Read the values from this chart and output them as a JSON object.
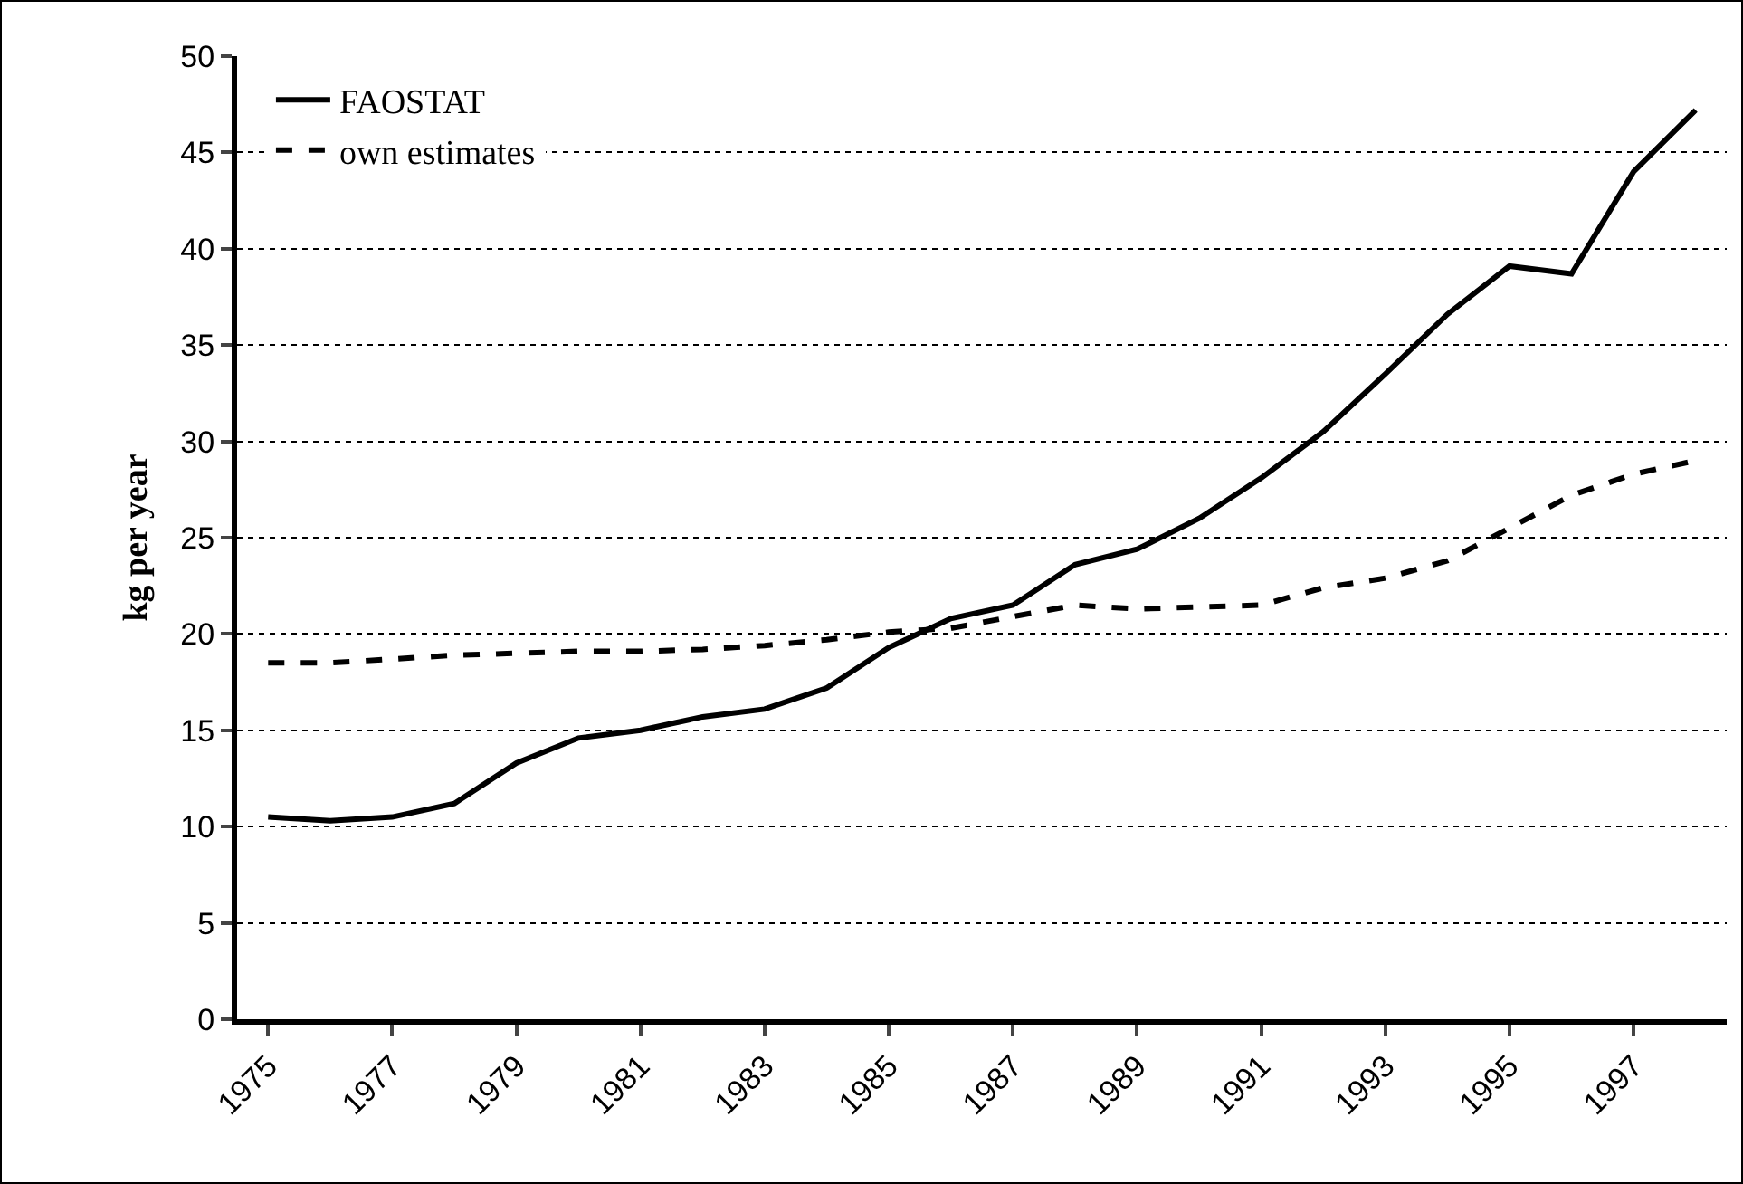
{
  "chart_data": {
    "type": "line",
    "ylabel": "kg per year",
    "categories": [
      "1975",
      null,
      "1977",
      null,
      "1979",
      null,
      "1981",
      null,
      "1983",
      null,
      "1985",
      null,
      "1987",
      null,
      "1989",
      null,
      "1991",
      null,
      "1993",
      null,
      "1995",
      null,
      "1997",
      null
    ],
    "series": [
      {
        "name": "FAOSTAT",
        "color": "#000000",
        "line_style": "solid",
        "values": [
          10.5,
          10.3,
          10.5,
          11.2,
          13.3,
          14.6,
          15.0,
          15.7,
          16.1,
          17.2,
          19.3,
          20.8,
          21.5,
          23.6,
          24.4,
          26.0,
          28.1,
          30.5,
          33.5,
          36.6,
          39.1,
          38.7,
          44.0,
          47.2
        ]
      },
      {
        "name": "own estimates",
        "color": "#000000",
        "line_style": "dashed",
        "values": [
          18.5,
          18.5,
          18.7,
          18.9,
          19.0,
          19.1,
          19.1,
          19.2,
          19.4,
          19.7,
          20.1,
          20.3,
          20.9,
          21.5,
          21.3,
          21.4,
          21.5,
          22.4,
          22.9,
          23.8,
          25.5,
          27.2,
          28.3,
          29.0
        ]
      }
    ],
    "ylim": [
      0,
      50
    ],
    "yticks": [
      0,
      5,
      10,
      15,
      20,
      25,
      30,
      35,
      40,
      45,
      50
    ],
    "grid": "y",
    "legend": "top left",
    "marker": "none"
  }
}
